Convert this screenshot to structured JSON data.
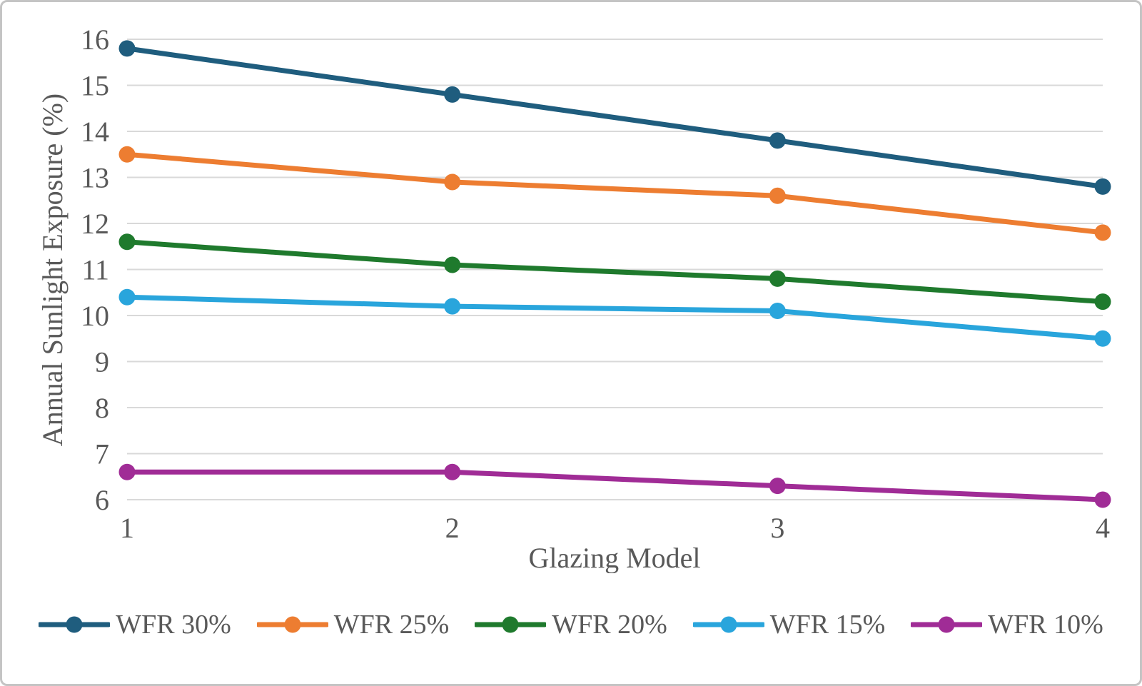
{
  "colors": {
    "background": "#ffffff",
    "frame_border": "#c4c4c4",
    "grid": "#d9d9d9",
    "text": "#595959"
  },
  "chart_data": {
    "type": "line",
    "title": "",
    "xlabel": "Glazing Model",
    "ylabel": "Annual Sunlight Exposure (%)",
    "categories": [
      "1",
      "2",
      "3",
      "4"
    ],
    "ylim": [
      6,
      16
    ],
    "ytick_step": 1,
    "grid": "horizontal",
    "legend_position": "bottom",
    "marker": "circle",
    "series": [
      {
        "name": "WFR 30%",
        "color": "#1f5d7e",
        "values": [
          15.8,
          14.8,
          13.8,
          12.8
        ]
      },
      {
        "name": "WFR 25%",
        "color": "#ed7d31",
        "values": [
          13.5,
          12.9,
          12.6,
          11.8
        ]
      },
      {
        "name": "WFR 20%",
        "color": "#1f7a2d",
        "values": [
          11.6,
          11.1,
          10.8,
          10.3
        ]
      },
      {
        "name": "WFR 15%",
        "color": "#29a5dc",
        "values": [
          10.4,
          10.2,
          10.1,
          9.5
        ]
      },
      {
        "name": "WFR 10%",
        "color": "#a02c96",
        "values": [
          6.6,
          6.6,
          6.3,
          6.0
        ]
      }
    ]
  }
}
